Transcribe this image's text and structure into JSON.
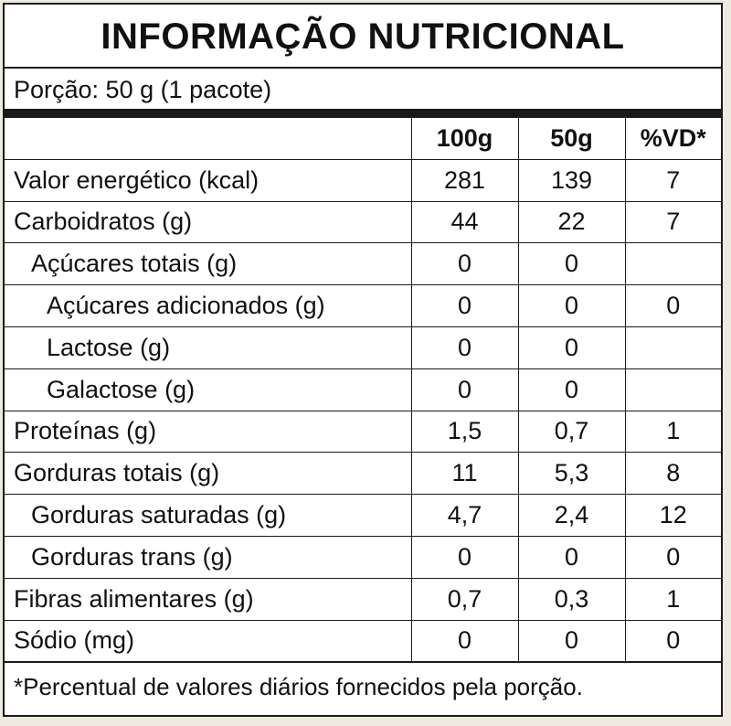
{
  "title": "INFORMAÇÃO NUTRICIONAL",
  "portion": "Porção: 50 g (1 pacote)",
  "columns": [
    "100g",
    "50g",
    "%VD*"
  ],
  "rows": [
    {
      "label": "Valor energético (kcal)",
      "v100": "281",
      "v50": "139",
      "vd": "7"
    },
    {
      "label": "Carboidratos (g)",
      "v100": "44",
      "v50": "22",
      "vd": "7"
    },
    {
      "label": "Açúcares totais (g)",
      "v100": "0",
      "v50": "0",
      "vd": ""
    },
    {
      "label": "Açúcares adicionados (g)",
      "v100": "0",
      "v50": "0",
      "vd": "0"
    },
    {
      "label": "Lactose (g)",
      "v100": "0",
      "v50": "0",
      "vd": ""
    },
    {
      "label": "Galactose (g)",
      "v100": "0",
      "v50": "0",
      "vd": ""
    },
    {
      "label": "Proteínas (g)",
      "v100": "1,5",
      "v50": "0,7",
      "vd": "1"
    },
    {
      "label": "Gorduras totais (g)",
      "v100": "11",
      "v50": "5,3",
      "vd": "8"
    },
    {
      "label": "Gorduras saturadas (g)",
      "v100": "4,7",
      "v50": "2,4",
      "vd": "12"
    },
    {
      "label": "Gorduras trans (g)",
      "v100": "0",
      "v50": "0",
      "vd": "0"
    },
    {
      "label": "Fibras alimentares (g)",
      "v100": "0,7",
      "v50": "0,3",
      "vd": "1"
    },
    {
      "label": "Sódio (mg)",
      "v100": "0",
      "v50": "0",
      "vd": "0"
    }
  ],
  "footnote": "*Percentual de valores diários fornecidos pela porção."
}
